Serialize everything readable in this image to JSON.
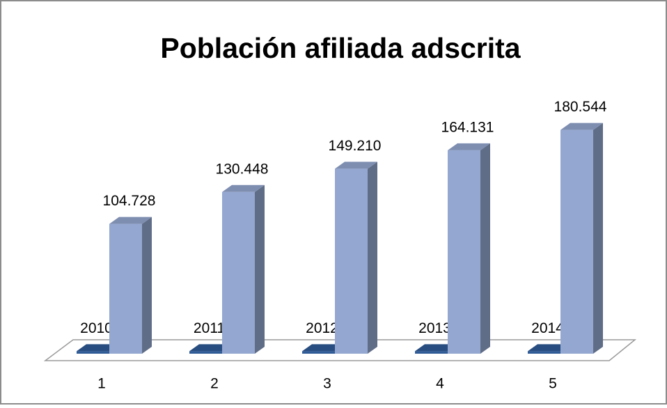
{
  "chart_data": {
    "type": "bar",
    "title": "Población afiliada adscrita",
    "categories": [
      "1",
      "2",
      "3",
      "4",
      "5"
    ],
    "series": [
      {
        "color": "#2f5b96",
        "values": [
          2010,
          2011,
          2012,
          2013,
          2014
        ]
      },
      {
        "color": "#94a7d0",
        "values": [
          104728,
          130448,
          149210,
          164131,
          180544
        ],
        "value_labels": [
          "104.728",
          "130.448",
          "149.210",
          "164.131",
          "180.544"
        ]
      }
    ],
    "ylim": [
      0,
      200000
    ]
  }
}
